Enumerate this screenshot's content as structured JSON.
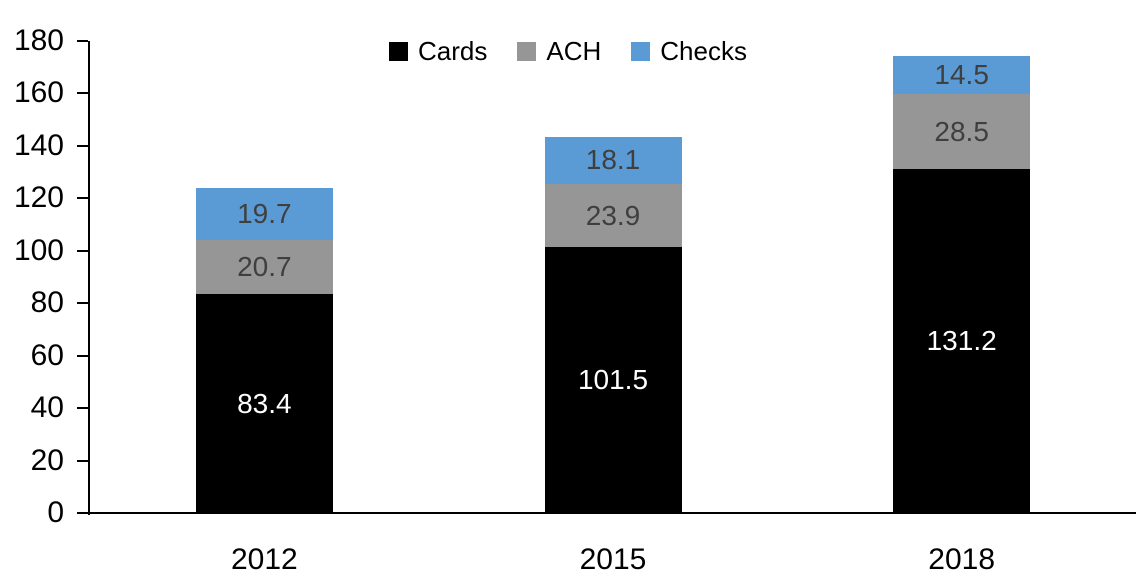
{
  "chart_data": {
    "type": "bar",
    "stacked": true,
    "title": "",
    "xlabel": "",
    "ylabel": "",
    "categories": [
      "2012",
      "2015",
      "2018"
    ],
    "series": [
      {
        "name": "Cards",
        "color": "#000000",
        "label_color": "#ffffff",
        "values": [
          83.4,
          101.5,
          131.2
        ]
      },
      {
        "name": "ACH",
        "color": "#969696",
        "label_color": "#3f3f3f",
        "values": [
          20.7,
          23.9,
          28.5
        ]
      },
      {
        "name": "Checks",
        "color": "#5b9bd5",
        "label_color": "#3f3f3f",
        "values": [
          19.7,
          18.1,
          14.5
        ]
      }
    ],
    "totals": [
      123.8,
      143.5,
      174.2
    ],
    "ylim": [
      0,
      180
    ],
    "y_ticks": [
      0,
      20,
      40,
      60,
      80,
      100,
      120,
      140,
      160,
      180
    ],
    "grid": false,
    "legend_position": "top-center",
    "value_labels": "inside-center",
    "axis_color": "#000000"
  }
}
